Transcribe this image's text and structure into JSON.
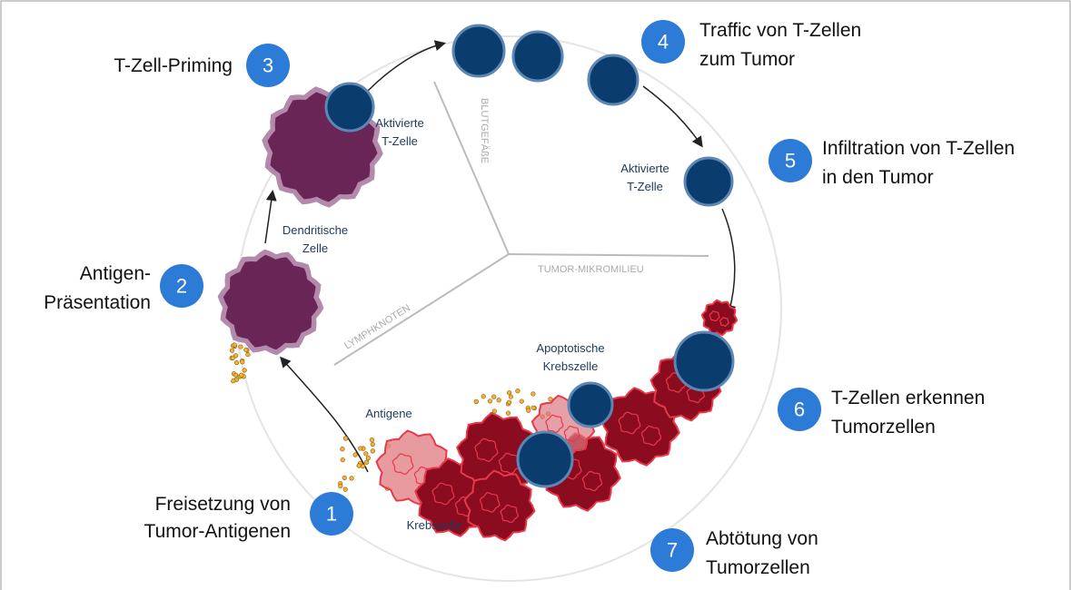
{
  "steps": [
    {
      "number": "1",
      "lines": [
        "Freisetzung von",
        "Tumor-Antigenen"
      ]
    },
    {
      "number": "2",
      "lines": [
        "Antigen-",
        "Präsentation"
      ]
    },
    {
      "number": "3",
      "lines": [
        "T-Zell-Priming"
      ]
    },
    {
      "number": "4",
      "lines": [
        "Traffic von T-Zellen",
        "zum Tumor"
      ]
    },
    {
      "number": "5",
      "lines": [
        "Infiltration von T-Zellen",
        "in den Tumor"
      ]
    },
    {
      "number": "6",
      "lines": [
        "T-Zellen erkennen",
        "Tumorzellen"
      ]
    },
    {
      "number": "7",
      "lines": [
        "Abtötung von",
        "Tumorzellen"
      ]
    }
  ],
  "cell_labels": [
    {
      "lines": [
        "Aktivierte",
        "T-Zelle"
      ]
    },
    {
      "lines": [
        "Aktivierte",
        "T-Zelle"
      ]
    },
    {
      "lines": [
        "Dendritische",
        "Zelle"
      ]
    },
    {
      "lines": [
        "Apoptotische",
        "Krebszelle"
      ]
    },
    {
      "lines": [
        "Antigene"
      ]
    },
    {
      "lines": [
        "Krebszelle"
      ]
    }
  ],
  "regions": [
    "BLUTGEFÄßE",
    "TUMOR-MIKROMILIEU",
    "LYMPHKNOTEN"
  ]
}
